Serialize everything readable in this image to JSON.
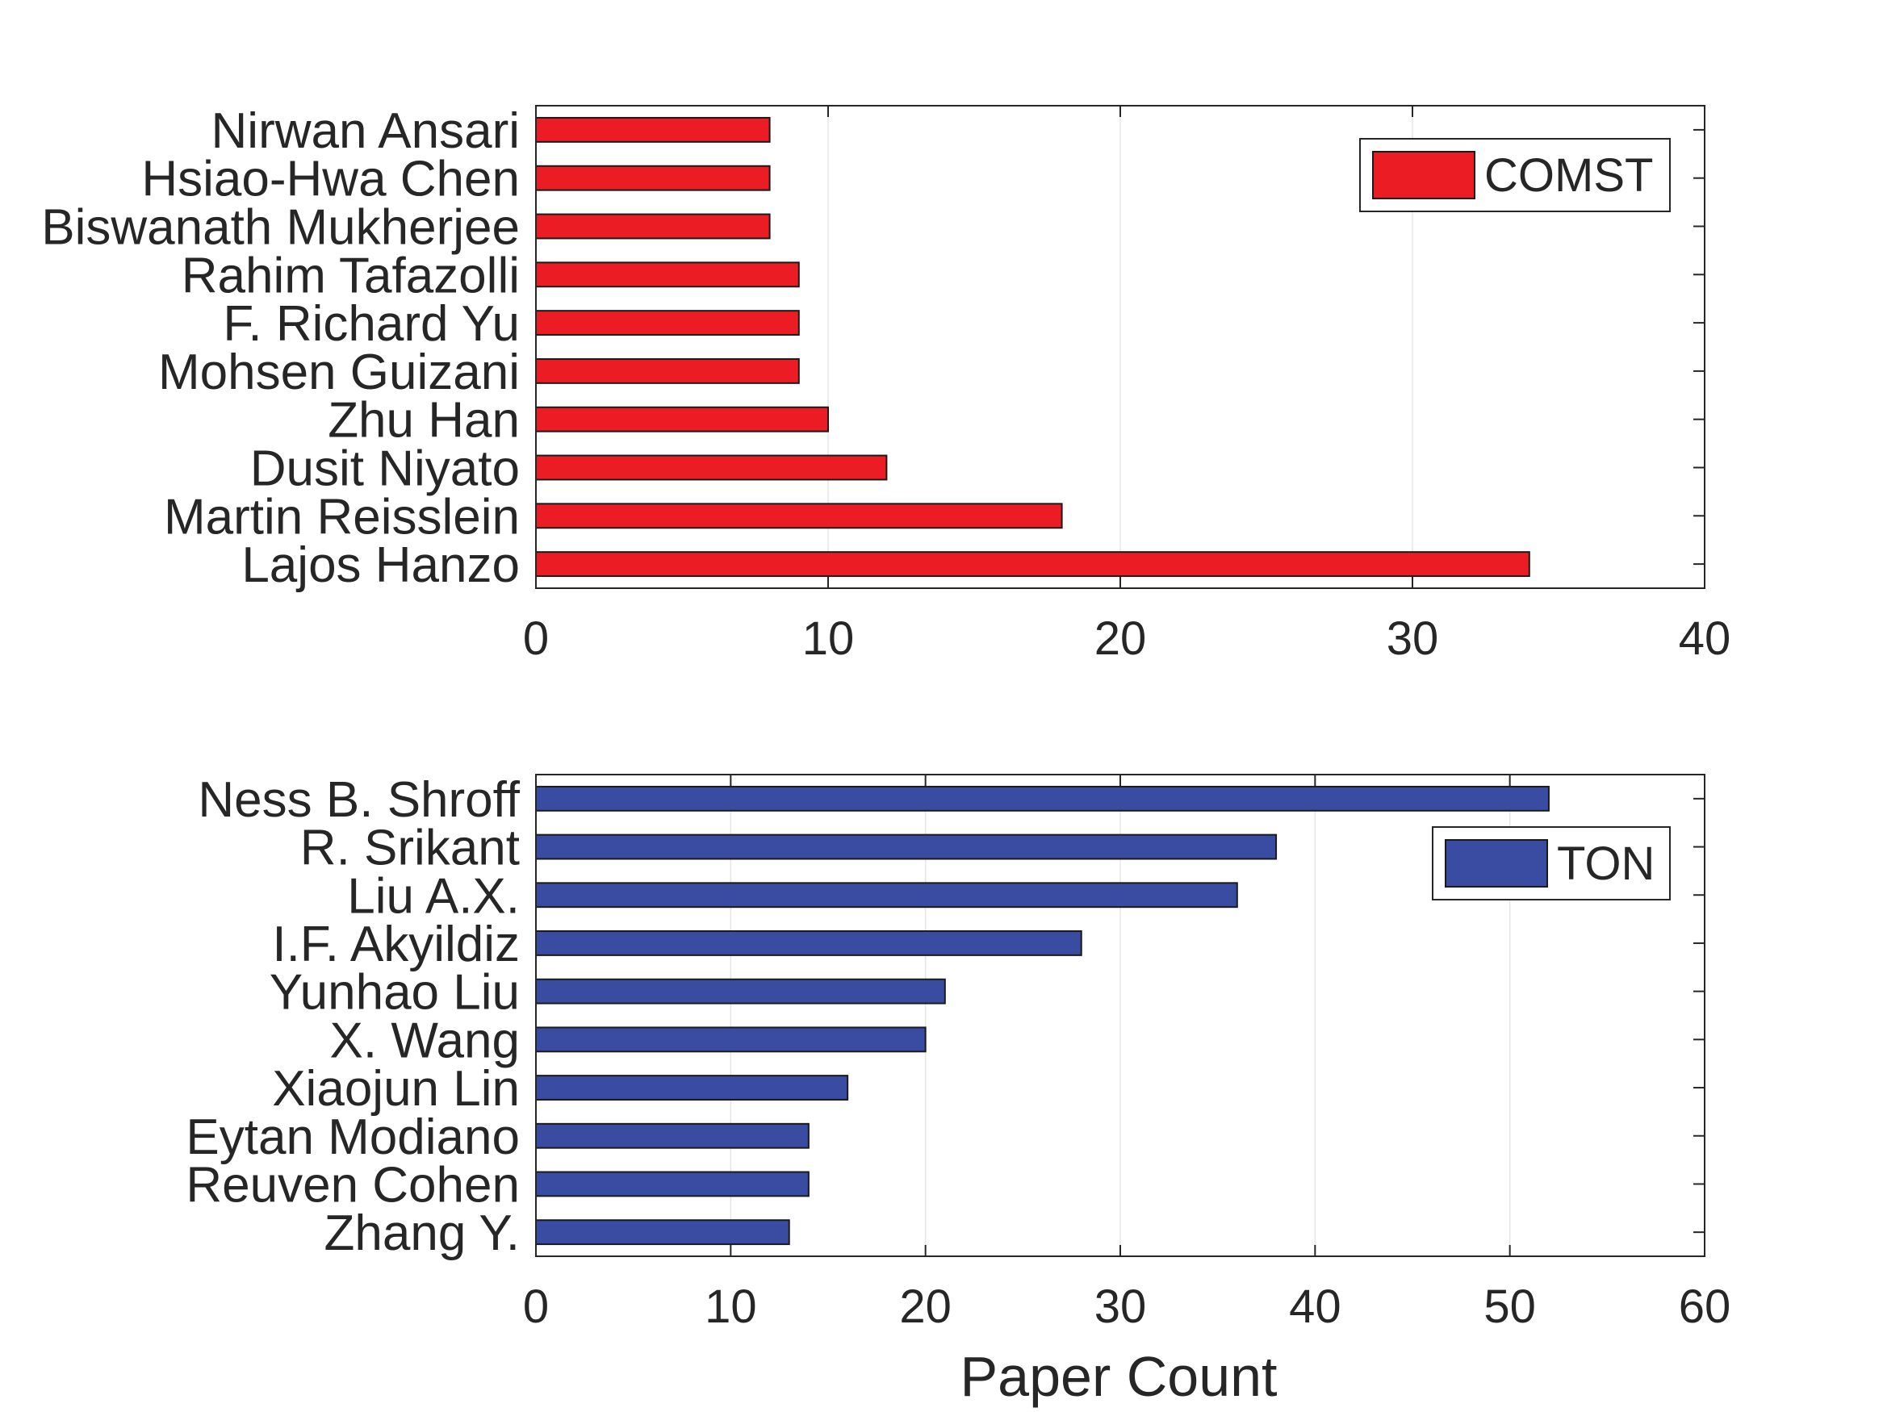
{
  "figure": {
    "xlabel": "Paper Count"
  },
  "chart_data": [
    {
      "type": "bar",
      "orientation": "horizontal",
      "categories": [
        "Nirwan Ansari",
        "Hsiao-Hwa Chen",
        "Biswanath Mukherjee",
        "Rahim Tafazolli",
        "F. Richard Yu",
        "Mohsen Guizani",
        "Zhu Han",
        "Dusit Niyato",
        "Martin Reisslein",
        "Lajos Hanzo"
      ],
      "series": [
        {
          "name": "COMST",
          "color": "#ec1c24",
          "values": [
            8,
            8,
            8,
            9,
            9,
            9,
            10,
            12,
            18,
            34
          ]
        }
      ],
      "xlim": [
        0,
        40
      ],
      "xticks": [
        "0",
        "10",
        "20",
        "30",
        "40"
      ],
      "grid": "vertical",
      "legend": "top-right"
    },
    {
      "type": "bar",
      "orientation": "horizontal",
      "categories": [
        "Ness B. Shroff",
        "R. Srikant",
        "Liu A.X.",
        "I.F. Akyildiz",
        "Yunhao Liu",
        "X. Wang",
        "Xiaojun Lin",
        "Eytan Modiano",
        "Reuven Cohen",
        "Zhang Y."
      ],
      "series": [
        {
          "name": "TON",
          "color": "#3a4ba2",
          "values": [
            52,
            38,
            36,
            28,
            21,
            20,
            16,
            14,
            14,
            13
          ]
        }
      ],
      "xlim": [
        0,
        60
      ],
      "xticks": [
        "0",
        "10",
        "20",
        "30",
        "40",
        "50",
        "60"
      ],
      "xlabel": "Paper Count",
      "grid": "vertical",
      "legend": "top-right"
    }
  ]
}
